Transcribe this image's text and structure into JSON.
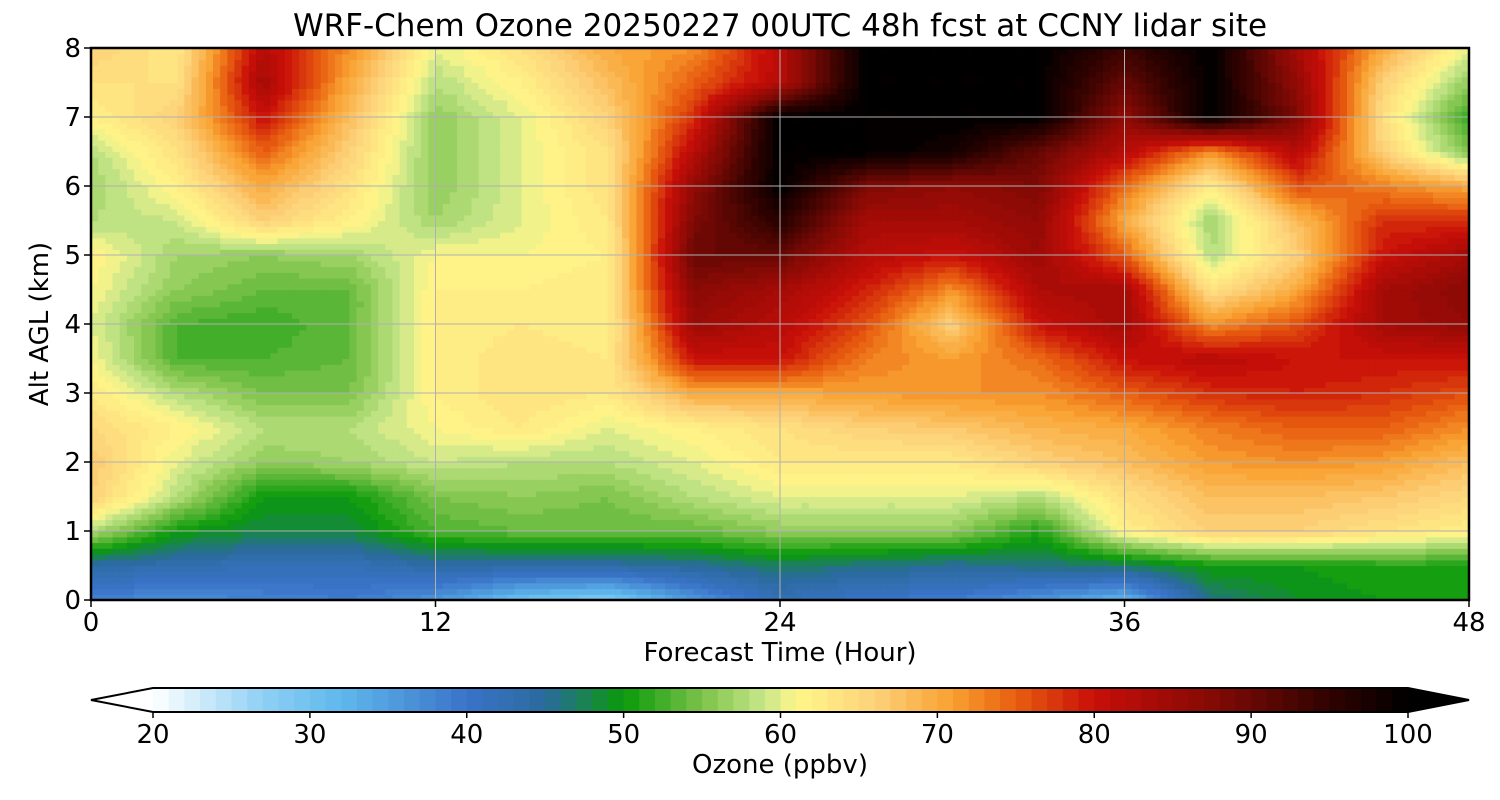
{
  "chart_data": {
    "type": "heatmap",
    "title": "WRF-Chem Ozone  20250227 00UTC 48h fcst at CCNY lidar site",
    "xlabel": "Forecast Time (Hour)",
    "ylabel": "Alt AGL (km)",
    "colorbar_label": "Ozone  (ppbv)",
    "xlim": [
      0,
      48
    ],
    "ylim": [
      0,
      8
    ],
    "xticks": [
      0,
      12,
      24,
      36,
      48
    ],
    "yticks": [
      0,
      1,
      2,
      3,
      4,
      5,
      6,
      7,
      8
    ],
    "colorbar_range": [
      20,
      100
    ],
    "colorbar_ticks": [
      20,
      30,
      40,
      50,
      60,
      70,
      80,
      90,
      100
    ],
    "colorbar_extend": "both",
    "grid": true,
    "colormap_stops": [
      {
        "v": 20,
        "c": "#ffffff"
      },
      {
        "v": 27,
        "c": "#8fd0f4"
      },
      {
        "v": 32,
        "c": "#5fb8ec"
      },
      {
        "v": 40,
        "c": "#3a73c8"
      },
      {
        "v": 45,
        "c": "#2a6a9e"
      },
      {
        "v": 50,
        "c": "#0a9a0a"
      },
      {
        "v": 55,
        "c": "#7cc24a"
      },
      {
        "v": 59,
        "c": "#c8e68a"
      },
      {
        "v": 61,
        "c": "#fff78a"
      },
      {
        "v": 66,
        "c": "#fdd27a"
      },
      {
        "v": 71,
        "c": "#f8a030"
      },
      {
        "v": 75,
        "c": "#e85e10"
      },
      {
        "v": 80,
        "c": "#c80e08"
      },
      {
        "v": 87,
        "c": "#8a0a05"
      },
      {
        "v": 94,
        "c": "#3a0301"
      },
      {
        "v": 100,
        "c": "#000000"
      }
    ],
    "x": [
      0,
      3,
      6,
      9,
      12,
      15,
      18,
      21,
      24,
      27,
      30,
      33,
      36,
      39,
      42,
      45,
      48
    ],
    "y": [
      0,
      0.5,
      1,
      1.5,
      2,
      2.5,
      3,
      3.5,
      4,
      4.5,
      5,
      5.5,
      6,
      6.5,
      7,
      7.5,
      8
    ],
    "values": [
      [
        38,
        37,
        38,
        39,
        36,
        30,
        28,
        36,
        42,
        40,
        39,
        36,
        32,
        46,
        49,
        50,
        50
      ],
      [
        44,
        43,
        42,
        42,
        44,
        44,
        44,
        45,
        47,
        46,
        45,
        46,
        47,
        50,
        50,
        51,
        51
      ],
      [
        58,
        50,
        48,
        48,
        53,
        54,
        54,
        54,
        56,
        56,
        56,
        51,
        62,
        66,
        66,
        64,
        62
      ],
      [
        66,
        58,
        50,
        50,
        55,
        56,
        55,
        58,
        60,
        60,
        60,
        58,
        64,
        68,
        68,
        67,
        65
      ],
      [
        67,
        60,
        56,
        57,
        59,
        58,
        58,
        60,
        63,
        63,
        63,
        66,
        68,
        71,
        72,
        71,
        68
      ],
      [
        65,
        62,
        58,
        58,
        61,
        63,
        60,
        62,
        64,
        66,
        67,
        69,
        70,
        73,
        75,
        75,
        72
      ],
      [
        63,
        58,
        55,
        55,
        62,
        64,
        63,
        70,
        70,
        71,
        72,
        72,
        75,
        78,
        79,
        78,
        76
      ],
      [
        61,
        53,
        53,
        54,
        62,
        64,
        63,
        80,
        80,
        73,
        71,
        74,
        80,
        82,
        80,
        80,
        80
      ],
      [
        60,
        53,
        52,
        54,
        62,
        63,
        62,
        85,
        82,
        76,
        66,
        80,
        84,
        72,
        76,
        84,
        86
      ],
      [
        61,
        56,
        54,
        54,
        62,
        62,
        63,
        87,
        84,
        79,
        72,
        83,
        84,
        64,
        70,
        84,
        87
      ],
      [
        62,
        57,
        56,
        57,
        61,
        61,
        62,
        90,
        90,
        82,
        80,
        85,
        75,
        58,
        66,
        80,
        84
      ],
      [
        58,
        59,
        66,
        62,
        57,
        60,
        63,
        88,
        96,
        84,
        84,
        86,
        70,
        57,
        68,
        78,
        78
      ],
      [
        57,
        62,
        70,
        64,
        56,
        60,
        64,
        86,
        100,
        88,
        86,
        88,
        74,
        62,
        76,
        73,
        70
      ],
      [
        58,
        64,
        75,
        66,
        56,
        60,
        64,
        82,
        100,
        100,
        98,
        90,
        82,
        72,
        82,
        66,
        55
      ],
      [
        62,
        66,
        80,
        68,
        56,
        60,
        66,
        78,
        100,
        100,
        100,
        100,
        86,
        100,
        88,
        64,
        52
      ],
      [
        64,
        64,
        84,
        70,
        58,
        62,
        68,
        75,
        82,
        100,
        100,
        100,
        90,
        100,
        86,
        66,
        56
      ],
      [
        66,
        63,
        82,
        72,
        60,
        64,
        70,
        72,
        82,
        100,
        100,
        100,
        94,
        100,
        84,
        70,
        60
      ]
    ]
  }
}
